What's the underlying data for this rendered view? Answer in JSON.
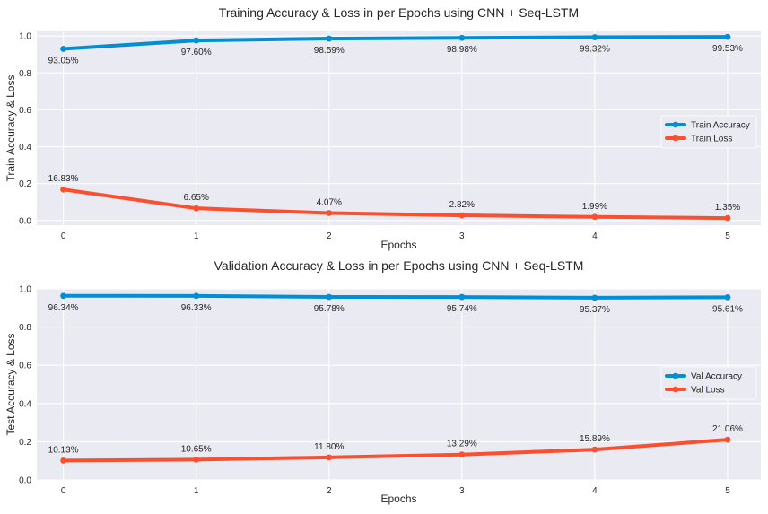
{
  "chart_data": [
    {
      "type": "line",
      "title": "Training Accuracy & Loss in per Epochs using CNN + Seq-LSTM",
      "xlabel": "Epochs",
      "ylabel": "Train Accuracy & Loss",
      "x": [
        0,
        1,
        2,
        3,
        4,
        5
      ],
      "xlim": [
        -0.2,
        5.25
      ],
      "ylim": [
        -0.025,
        1.025
      ],
      "yticks": [
        "0.0",
        "0.2",
        "0.4",
        "0.6",
        "0.8",
        "1.0"
      ],
      "yticks_values": [
        0,
        0.2,
        0.4,
        0.6,
        0.8,
        1.0
      ],
      "grid": true,
      "legend_position": "center-right",
      "series": [
        {
          "name": "Train Accuracy",
          "color": "#008fd5",
          "values": [
            0.9305,
            0.976,
            0.9859,
            0.9898,
            0.9932,
            0.9953
          ],
          "labels": [
            "93.05%",
            "97.60%",
            "98.59%",
            "98.98%",
            "99.32%",
            "99.53%"
          ],
          "label_position": "below"
        },
        {
          "name": "Train Loss",
          "color": "#fc4f30",
          "values": [
            0.1683,
            0.0665,
            0.0407,
            0.0282,
            0.0199,
            0.0135
          ],
          "labels": [
            "16.83%",
            "6.65%",
            "4.07%",
            "2.82%",
            "1.99%",
            "1.35%"
          ],
          "label_position": "above"
        }
      ]
    },
    {
      "type": "line",
      "title": "Validation Accuracy & Loss in per Epochs using CNN + Seq-LSTM",
      "xlabel": "Epochs",
      "ylabel": "Test Accuracy & Loss",
      "x": [
        0,
        1,
        2,
        3,
        4,
        5
      ],
      "xlim": [
        -0.2,
        5.25
      ],
      "ylim": [
        0,
        1.0
      ],
      "yticks": [
        "0.0",
        "0.2",
        "0.4",
        "0.6",
        "0.8",
        "1.0"
      ],
      "yticks_values": [
        0,
        0.2,
        0.4,
        0.6,
        0.8,
        1.0
      ],
      "grid": true,
      "legend_position": "center-right",
      "series": [
        {
          "name": "Val Accuracy",
          "color": "#008fd5",
          "values": [
            0.9634,
            0.9633,
            0.9578,
            0.9574,
            0.9537,
            0.9561
          ],
          "labels": [
            "96.34%",
            "96.33%",
            "95.78%",
            "95.74%",
            "95.37%",
            "95.61%"
          ],
          "label_position": "below"
        },
        {
          "name": "Val Loss",
          "color": "#fc4f30",
          "values": [
            0.1013,
            0.1065,
            0.118,
            0.1329,
            0.1589,
            0.2106
          ],
          "labels": [
            "10.13%",
            "10.65%",
            "11.80%",
            "13.29%",
            "15.89%",
            "21.06%"
          ],
          "label_position": "above"
        }
      ]
    }
  ]
}
